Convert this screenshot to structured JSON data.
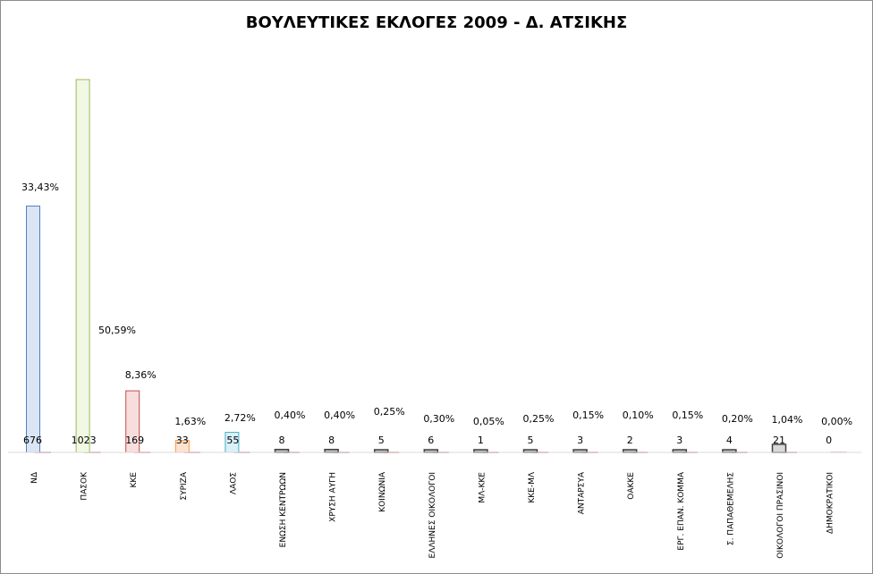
{
  "chart_data": {
    "type": "bar",
    "title": "ΒΟΥΛΕΥΤΙΚΕΣ ΕΚΛΟΓΕΣ 2009 - Δ. ΑΤΣΙΚΗΣ",
    "xlabel": "",
    "ylabel": "",
    "grid": false,
    "legend": "none",
    "ylim": [
      0,
      1023
    ],
    "categories": [
      "ΝΔ",
      "ΠΑΣΟΚ",
      "ΚΚΕ",
      "ΣΥΡΙΖΑ",
      "ΛΑΟΣ",
      "ΕΝΩΣΗ ΚΕΝΤΡΩΩΝ",
      "ΧΡΥΣΗ ΑΥΓΗ",
      "ΚΟΙΝΩΝΙΑ",
      "ΕΛΛΗΝΕΣ ΟΙΚΟΛΟΓΟΙ",
      "ΜΛ-ΚΚΕ",
      "ΚΚΕ-ΜΛ",
      "ΑΝΤΑΡΣΥΑ",
      "ΟΑΚΚΕ",
      "ΕΡΓ. ΕΠΑΝ. ΚΟΜΜΑ",
      "Σ. ΠΑΠΑΘΕΜΕΛΗΣ",
      "ΟΙΚΟΛΟΓΟΙ ΠΡΑΣΙΝΟΙ",
      "ΔΗΜΟΚΡΑΤΙΚΟΙ"
    ],
    "series": [
      {
        "values": [
          676,
          1023,
          169,
          33,
          55,
          8,
          8,
          5,
          6,
          1,
          5,
          3,
          2,
          3,
          4,
          21,
          0
        ],
        "value_labels": [
          "676",
          "1023",
          "169",
          "33",
          "55",
          "8",
          "8",
          "5",
          "6",
          "1",
          "5",
          "3",
          "2",
          "3",
          "4",
          "21",
          "0"
        ]
      },
      {
        "values": [
          33.43,
          50.59,
          8.36,
          1.63,
          2.72,
          0.4,
          0.4,
          0.25,
          0.3,
          0.05,
          0.25,
          0.15,
          0.1,
          0.15,
          0.2,
          1.04,
          0.0
        ],
        "value_labels": [
          "33,43%",
          "50,59%",
          "8,36%",
          "1,63%",
          "2,72%",
          "0,40%",
          "0,40%",
          "0,25%",
          "0,30%",
          "0,05%",
          "0,25%",
          "0,15%",
          "0,10%",
          "0,15%",
          "0,20%",
          "1,04%",
          "0,00%"
        ]
      }
    ],
    "bar_colors": [
      "#4f81bd",
      "#9bbb59",
      "#c0504d",
      "#f79646",
      "#4bacc6",
      "#404040",
      "#404040",
      "#404040",
      "#404040",
      "#404040",
      "#404040",
      "#404040",
      "#404040",
      "#404040",
      "#404040",
      "#404040",
      "#404040"
    ],
    "bar_fills": [
      "#dbe5f3",
      "#f1f8e4",
      "#f7dedd",
      "#fde3cf",
      "#d9f1f7",
      "#bfbfbf",
      "#bfbfbf",
      "#bfbfbf",
      "#bfbfbf",
      "#bfbfbf",
      "#bfbfbf",
      "#bfbfbf",
      "#bfbfbf",
      "#bfbfbf",
      "#bfbfbf",
      "#d9d9d9",
      "#d9d9d9"
    ],
    "shadow_color": "#e6b9b8"
  }
}
